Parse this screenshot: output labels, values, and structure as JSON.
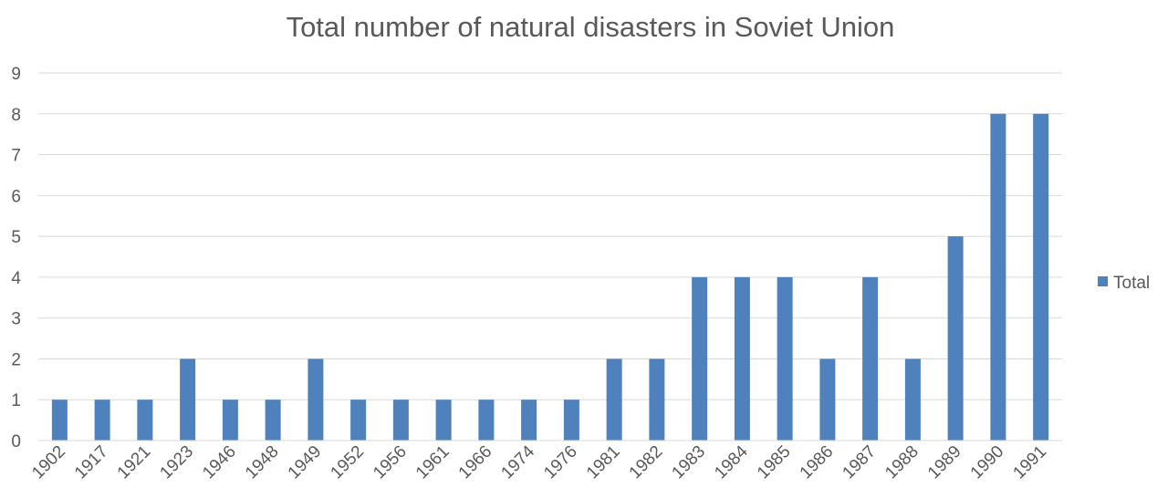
{
  "chart_data": {
    "type": "bar",
    "title": "Total number of natural disasters in Soviet Union",
    "xlabel": "",
    "ylabel": "",
    "categories": [
      "1902",
      "1917",
      "1921",
      "1923",
      "1946",
      "1948",
      "1949",
      "1952",
      "1956",
      "1961",
      "1966",
      "1974",
      "1976",
      "1981",
      "1982",
      "1983",
      "1984",
      "1985",
      "1986",
      "1987",
      "1988",
      "1989",
      "1990",
      "1991"
    ],
    "series": [
      {
        "name": "Total",
        "color": "#4f81bd",
        "values": [
          1,
          1,
          1,
          2,
          1,
          1,
          2,
          1,
          1,
          1,
          1,
          1,
          1,
          2,
          2,
          4,
          4,
          4,
          2,
          4,
          2,
          5,
          8,
          8
        ]
      }
    ],
    "ylim": [
      0,
      9
    ],
    "yticks": [
      "0",
      "1",
      "2",
      "3",
      "4",
      "5",
      "6",
      "7",
      "8",
      "9"
    ],
    "grid": true,
    "legend_position": "right"
  }
}
